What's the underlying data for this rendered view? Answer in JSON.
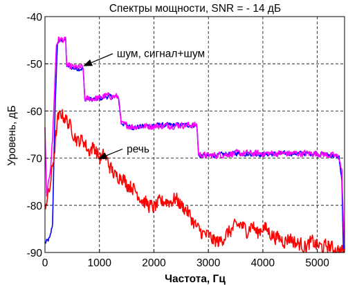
{
  "chart_data": {
    "type": "line",
    "title": "Спектры мощности, SNR = - 14 дБ",
    "xlabel": "Частота, Гц",
    "ylabel": "Уровень, дБ",
    "xlim": [
      0,
      5500
    ],
    "ylim": [
      -90,
      -40
    ],
    "xticks": [
      0,
      1000,
      2000,
      3000,
      4000,
      5000
    ],
    "xtick_labels": [
      "0",
      "1000",
      "2000",
      "3000",
      "4000",
      "5000"
    ],
    "yticks": [
      -90,
      -80,
      -70,
      -60,
      -50,
      -40
    ],
    "ytick_labels": [
      "-90",
      "-80",
      "-70",
      "-60",
      "-50",
      "-40"
    ],
    "grid": true,
    "grid_style": "dashed",
    "series": [
      {
        "color": "#0000ff",
        "noise": 0.5,
        "points": [
          [
            0,
            -88
          ],
          [
            50,
            -87.5
          ],
          [
            90,
            -87
          ],
          [
            140,
            -84
          ],
          [
            160,
            -72
          ],
          [
            190,
            -58
          ],
          [
            230,
            -45.5
          ],
          [
            300,
            -45
          ],
          [
            380,
            -45
          ],
          [
            400,
            -50.5
          ],
          [
            550,
            -51
          ],
          [
            700,
            -51
          ],
          [
            730,
            -57.5
          ],
          [
            1000,
            -57.5
          ],
          [
            1100,
            -57
          ],
          [
            1350,
            -57
          ],
          [
            1400,
            -62.5
          ],
          [
            1600,
            -63.5
          ],
          [
            2000,
            -63
          ],
          [
            2500,
            -63
          ],
          [
            2790,
            -63
          ],
          [
            2820,
            -69.5
          ],
          [
            3000,
            -69.5
          ],
          [
            3500,
            -69
          ],
          [
            4000,
            -69.2
          ],
          [
            4500,
            -69
          ],
          [
            5000,
            -69
          ],
          [
            5300,
            -69.5
          ],
          [
            5400,
            -69.8
          ],
          [
            5450,
            -75
          ],
          [
            5480,
            -90
          ]
        ]
      },
      {
        "color": "#ff00ff",
        "noise": 0.7,
        "points": [
          [
            0,
            -64
          ],
          [
            30,
            -78.5
          ],
          [
            60,
            -76
          ],
          [
            100,
            -72
          ],
          [
            140,
            -66
          ],
          [
            170,
            -57
          ],
          [
            210,
            -46
          ],
          [
            250,
            -44.8
          ],
          [
            380,
            -45
          ],
          [
            400,
            -50.5
          ],
          [
            550,
            -50.8
          ],
          [
            700,
            -50.8
          ],
          [
            730,
            -57.5
          ],
          [
            1000,
            -57.3
          ],
          [
            1100,
            -56.8
          ],
          [
            1350,
            -57
          ],
          [
            1400,
            -62.8
          ],
          [
            1600,
            -63.3
          ],
          [
            2000,
            -63.2
          ],
          [
            2500,
            -63
          ],
          [
            2790,
            -63
          ],
          [
            2820,
            -69.2
          ],
          [
            3000,
            -69.5
          ],
          [
            3500,
            -69
          ],
          [
            4000,
            -69
          ],
          [
            4500,
            -69
          ],
          [
            5000,
            -69
          ],
          [
            5300,
            -69.5
          ],
          [
            5400,
            -69.8
          ],
          [
            5450,
            -73
          ],
          [
            5500,
            -90
          ]
        ]
      },
      {
        "color": "#ff0000",
        "noise": 1.5,
        "points": [
          [
            0,
            -80
          ],
          [
            80,
            -77
          ],
          [
            160,
            -70
          ],
          [
            230,
            -62
          ],
          [
            300,
            -60.5
          ],
          [
            400,
            -62
          ],
          [
            500,
            -64
          ],
          [
            600,
            -66.5
          ],
          [
            700,
            -66
          ],
          [
            800,
            -68.5
          ],
          [
            900,
            -67.5
          ],
          [
            1000,
            -70
          ],
          [
            1100,
            -69.5
          ],
          [
            1200,
            -72
          ],
          [
            1300,
            -74
          ],
          [
            1400,
            -73.5
          ],
          [
            1500,
            -75.5
          ],
          [
            1600,
            -76
          ],
          [
            1700,
            -77.5
          ],
          [
            1800,
            -79
          ],
          [
            1900,
            -80
          ],
          [
            2000,
            -80.5
          ],
          [
            2100,
            -79.5
          ],
          [
            2200,
            -79
          ],
          [
            2300,
            -79.2
          ],
          [
            2400,
            -78.5
          ],
          [
            2500,
            -80
          ],
          [
            2600,
            -81
          ],
          [
            2700,
            -83
          ],
          [
            2800,
            -85
          ],
          [
            2900,
            -86
          ],
          [
            3000,
            -86.5
          ],
          [
            3100,
            -87.5
          ],
          [
            3200,
            -87.8
          ],
          [
            3300,
            -86.5
          ],
          [
            3400,
            -85.5
          ],
          [
            3500,
            -84.5
          ],
          [
            3600,
            -84
          ],
          [
            3700,
            -85.5
          ],
          [
            3800,
            -84
          ],
          [
            3900,
            -86
          ],
          [
            4000,
            -84.5
          ],
          [
            4100,
            -85.5
          ],
          [
            4200,
            -86.5
          ],
          [
            4300,
            -87
          ],
          [
            4400,
            -87.5
          ],
          [
            4500,
            -86.8
          ],
          [
            4600,
            -88
          ],
          [
            4700,
            -88.3
          ],
          [
            4800,
            -88.7
          ],
          [
            4900,
            -87.8
          ],
          [
            5000,
            -88.5
          ],
          [
            5100,
            -89
          ],
          [
            5200,
            -88.5
          ],
          [
            5300,
            -89.3
          ],
          [
            5400,
            -89.5
          ],
          [
            5500,
            -90
          ]
        ]
      }
    ],
    "annotations": [
      {
        "text": "шум, сигнал+шум",
        "arrow_to": [
          700,
          -50.5
        ],
        "text_at": [
          1320,
          -48.6
        ]
      },
      {
        "text": "речь",
        "arrow_to": [
          970,
          -70.2
        ],
        "text_at": [
          1500,
          -68.8
        ]
      }
    ]
  }
}
